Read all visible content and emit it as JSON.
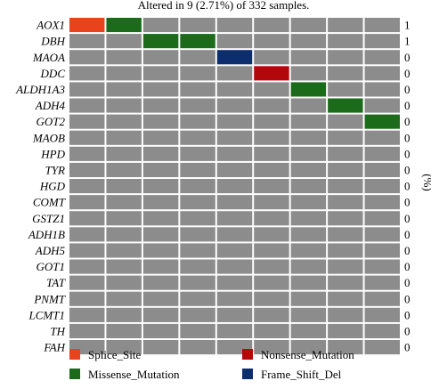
{
  "chart_data": {
    "type": "heatmap",
    "title": "Altered in 9 (2.71%) of 332 samples.",
    "right_axis_label": "(%)",
    "genes": [
      "AOX1",
      "DBH",
      "MAOA",
      "DDC",
      "ALDH1A3",
      "ADH4",
      "GOT2",
      "MAOB",
      "HPD",
      "TYR",
      "HGD",
      "COMT",
      "GSTZ1",
      "ADH1B",
      "ADH5",
      "GOT1",
      "TAT",
      "PNMT",
      "LCMT1",
      "TH",
      "FAH"
    ],
    "percentages": [
      "1",
      "1",
      "0",
      "0",
      "0",
      "0",
      "0",
      "0",
      "0",
      "0",
      "0",
      "0",
      "0",
      "0",
      "0",
      "0",
      "0",
      "0",
      "0",
      "0",
      "0"
    ],
    "columns": 9,
    "cells": [
      {
        "gene": "AOX1",
        "column": 0,
        "type": "Splice_Site"
      },
      {
        "gene": "AOX1",
        "column": 1,
        "type": "Missense_Mutation"
      },
      {
        "gene": "DBH",
        "column": 2,
        "type": "Missense_Mutation"
      },
      {
        "gene": "DBH",
        "column": 3,
        "type": "Missense_Mutation"
      },
      {
        "gene": "MAOA",
        "column": 4,
        "type": "Frame_Shift_Del"
      },
      {
        "gene": "DDC",
        "column": 5,
        "type": "Nonsense_Mutation"
      },
      {
        "gene": "ALDH1A3",
        "column": 6,
        "type": "Missense_Mutation"
      },
      {
        "gene": "ADH4",
        "column": 7,
        "type": "Missense_Mutation"
      },
      {
        "gene": "GOT2",
        "column": 8,
        "type": "Missense_Mutation"
      }
    ],
    "background_color": "#8c8c8c",
    "legend": [
      {
        "label": "Splice_Site",
        "color": "#e8431d"
      },
      {
        "label": "Nonsense_Mutation",
        "color": "#b2070b"
      },
      {
        "label": "Missense_Mutation",
        "color": "#1b6b1b"
      },
      {
        "label": "Frame_Shift_Del",
        "color": "#0d2e6e"
      }
    ]
  }
}
